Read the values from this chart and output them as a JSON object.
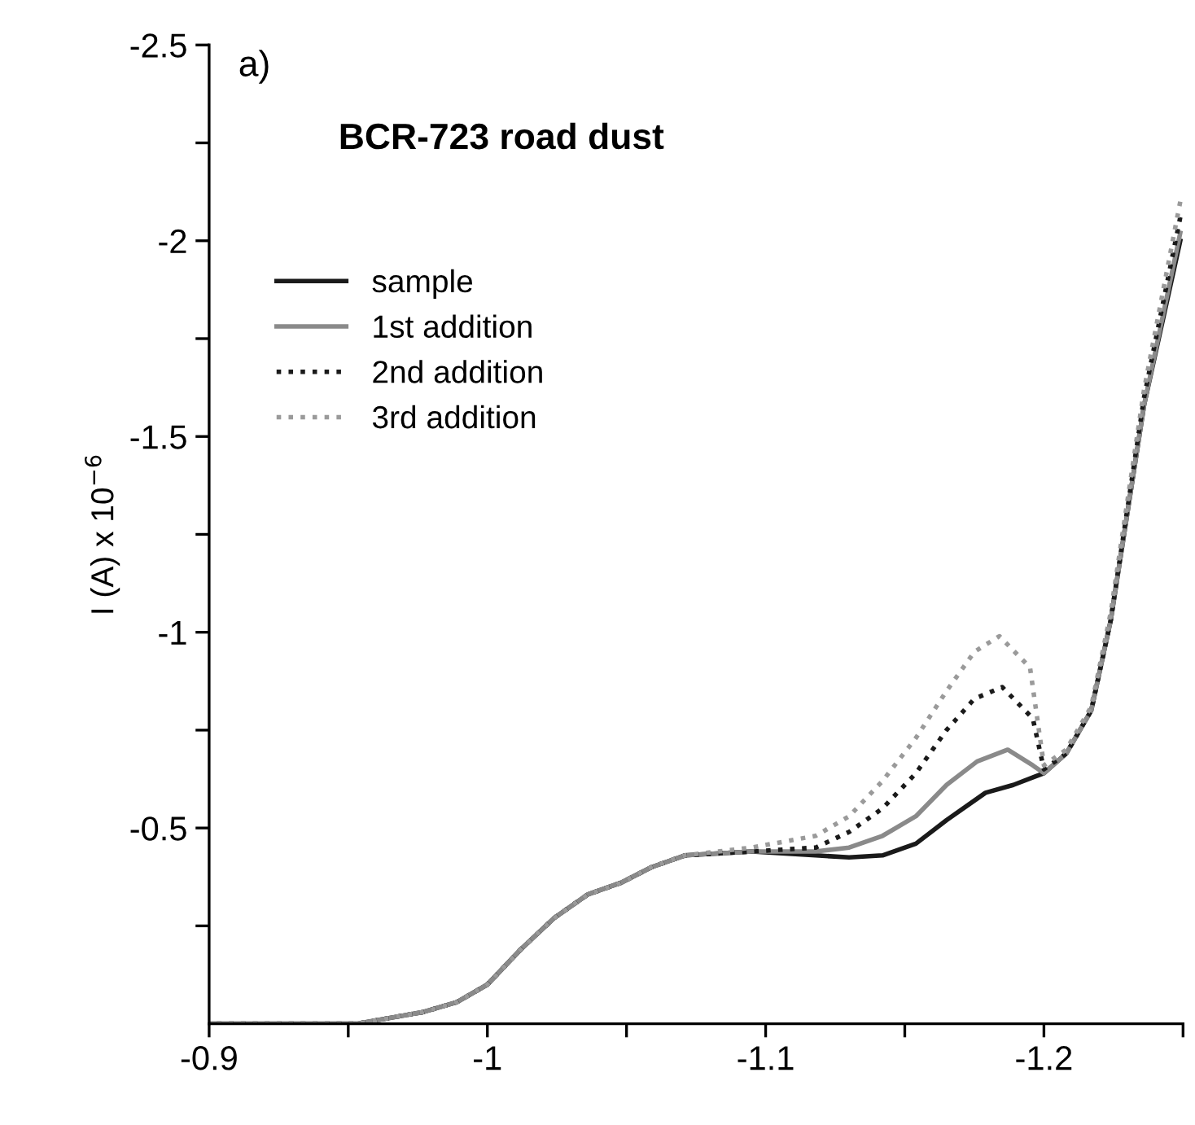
{
  "chart_data": {
    "type": "line",
    "title": "BCR-723 road dust",
    "ylabel": "I (A) x 10$^{−6}$",
    "annotations": [
      "a)"
    ],
    "xlim": [
      -0.9,
      -1.25
    ],
    "ylim": [
      0,
      -2.5
    ],
    "xticks": [
      -0.9,
      {
        "value": -0.95,
        "label": null
      },
      -1,
      {
        "value": -1.05,
        "label": null
      },
      -1.1,
      {
        "value": -1.15,
        "label": null
      },
      -1.2,
      {
        "value": -1.25,
        "label": null
      }
    ],
    "yticks": [
      {
        "value": -0.25,
        "label": null
      },
      -0.5,
      {
        "value": -0.75,
        "label": null
      },
      -1,
      {
        "value": -1.25,
        "label": null
      },
      -1.5,
      {
        "value": -1.75,
        "label": null
      },
      -2,
      {
        "value": -2.25,
        "label": null
      },
      -2.5
    ],
    "grid": false,
    "legend": "top left",
    "series": [
      {
        "name": "sample",
        "color": "#1a1a1a",
        "line_style": "solid",
        "x": [
          -0.9,
          -0.953,
          -0.977,
          -0.989,
          -1.0,
          -1.012,
          -1.024,
          -1.036,
          -1.048,
          -1.059,
          -1.071,
          -1.095,
          -1.118,
          -1.13,
          -1.142,
          -1.154,
          -1.165,
          -1.179,
          -1.189,
          -1.2,
          -1.208,
          -1.217,
          -1.224,
          -1.236,
          -1.249
        ],
        "values": [
          0,
          0,
          -0.03,
          -0.055,
          -0.1,
          -0.19,
          -0.27,
          -0.33,
          -0.36,
          -0.4,
          -0.43,
          -0.44,
          -0.43,
          -0.425,
          -0.43,
          -0.46,
          -0.52,
          -0.59,
          -0.61,
          -0.64,
          -0.69,
          -0.8,
          -1.03,
          -1.58,
          -2.0
        ]
      },
      {
        "name": "1st addition",
        "color": "#8a8a8a",
        "line_style": "solid",
        "x": [
          -0.9,
          -0.953,
          -0.977,
          -0.989,
          -1.0,
          -1.012,
          -1.024,
          -1.036,
          -1.048,
          -1.059,
          -1.071,
          -1.095,
          -1.118,
          -1.13,
          -1.142,
          -1.154,
          -1.165,
          -1.176,
          -1.187,
          -1.196,
          -1.2,
          -1.208,
          -1.217,
          -1.224,
          -1.236,
          -1.249
        ],
        "values": [
          0,
          0,
          -0.03,
          -0.055,
          -0.1,
          -0.19,
          -0.27,
          -0.33,
          -0.36,
          -0.4,
          -0.43,
          -0.44,
          -0.44,
          -0.45,
          -0.48,
          -0.53,
          -0.61,
          -0.67,
          -0.7,
          -0.66,
          -0.64,
          -0.69,
          -0.8,
          -1.03,
          -1.58,
          -2.02
        ]
      },
      {
        "name": "2nd addition",
        "color": "#1a1a1a",
        "line_style": "dotted",
        "x": [
          -0.9,
          -0.953,
          -0.977,
          -0.989,
          -1.0,
          -1.012,
          -1.024,
          -1.036,
          -1.048,
          -1.059,
          -1.071,
          -1.095,
          -1.118,
          -1.13,
          -1.142,
          -1.154,
          -1.165,
          -1.175,
          -1.185,
          -1.196,
          -1.2,
          -1.208,
          -1.217,
          -1.224,
          -1.236,
          -1.249
        ],
        "values": [
          0,
          0,
          -0.03,
          -0.055,
          -0.1,
          -0.19,
          -0.27,
          -0.33,
          -0.36,
          -0.4,
          -0.43,
          -0.44,
          -0.45,
          -0.49,
          -0.55,
          -0.64,
          -0.75,
          -0.83,
          -0.86,
          -0.78,
          -0.65,
          -0.69,
          -0.8,
          -1.03,
          -1.6,
          -2.06
        ]
      },
      {
        "name": "3rd addition",
        "color": "#9a9a9a",
        "line_style": "dotted",
        "x": [
          -0.9,
          -0.953,
          -0.977,
          -0.989,
          -1.0,
          -1.012,
          -1.024,
          -1.036,
          -1.048,
          -1.059,
          -1.071,
          -1.095,
          -1.118,
          -1.13,
          -1.142,
          -1.154,
          -1.165,
          -1.175,
          -1.184,
          -1.195,
          -1.2,
          -1.208,
          -1.217,
          -1.224,
          -1.236,
          -1.249
        ],
        "values": [
          0,
          0,
          -0.03,
          -0.055,
          -0.1,
          -0.19,
          -0.27,
          -0.33,
          -0.36,
          -0.4,
          -0.43,
          -0.45,
          -0.48,
          -0.53,
          -0.62,
          -0.73,
          -0.85,
          -0.95,
          -0.99,
          -0.91,
          -0.66,
          -0.7,
          -0.81,
          -1.05,
          -1.62,
          -2.1
        ]
      }
    ]
  }
}
